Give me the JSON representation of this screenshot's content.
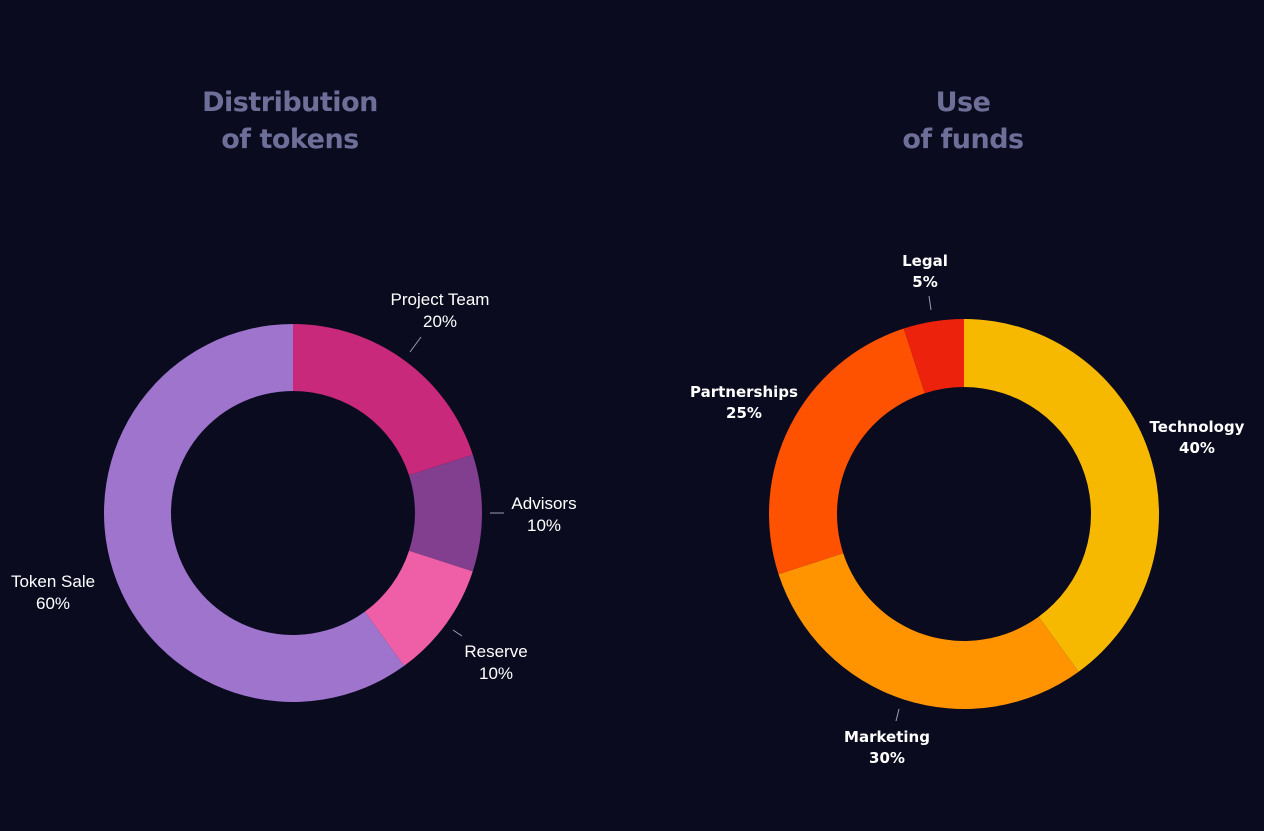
{
  "chart_data": [
    {
      "type": "pie",
      "title_lines": [
        "Distribution",
        "of tokens"
      ],
      "categories": [
        "Project Team",
        "Advisors",
        "Reserve",
        "Token Sale"
      ],
      "values": [
        20,
        10,
        10,
        60
      ],
      "value_labels": [
        "20%",
        "10%",
        "10%",
        "60%"
      ],
      "colors": [
        "#c8297b",
        "#823f8f",
        "#ef5fa8",
        "#9e74cd"
      ],
      "donut": true
    },
    {
      "type": "pie",
      "title_lines": [
        "Use",
        "of funds"
      ],
      "categories": [
        "Technology",
        "Marketing",
        "Partnerships",
        "Legal"
      ],
      "values": [
        40,
        30,
        25,
        5
      ],
      "value_labels": [
        "40%",
        "30%",
        "25%",
        "5%"
      ],
      "colors": [
        "#f7b900",
        "#ff9400",
        "#ff5200",
        "#ed220d"
      ],
      "donut": true
    }
  ]
}
